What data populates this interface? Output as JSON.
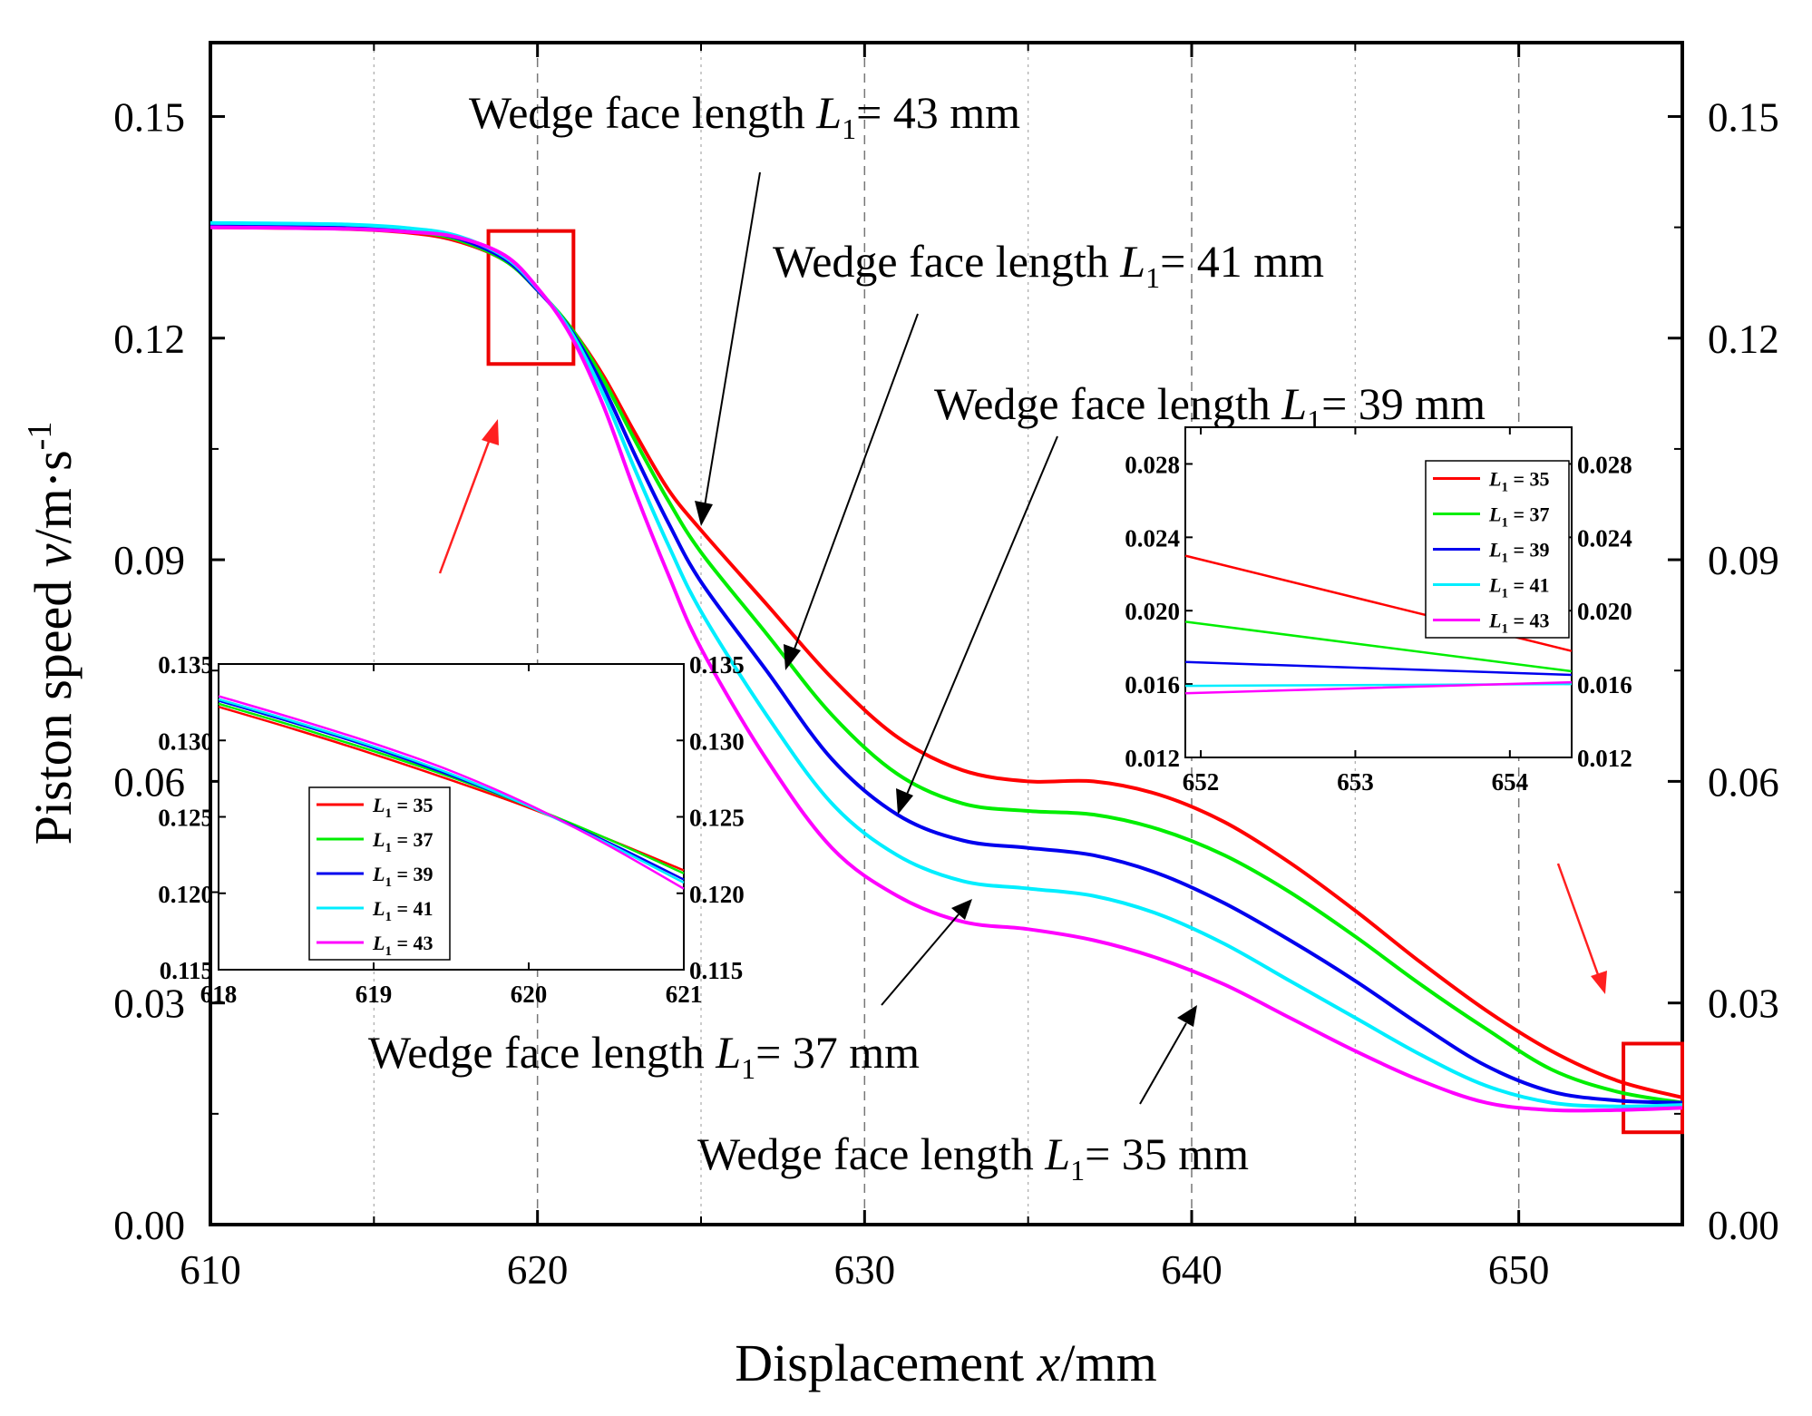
{
  "chart_data": {
    "type": "line",
    "xlabel": "Displacement",
    "xlabel_var": "x",
    "xlabel_unit": "/mm",
    "ylabel": "Piston speed",
    "ylabel_var": "v",
    "ylabel_unit": "/m·s",
    "ylabel_exp": "-1",
    "xlim": [
      610,
      655
    ],
    "ylim": [
      0,
      0.16
    ],
    "x_ticks": [
      610,
      620,
      630,
      640,
      650
    ],
    "y_ticks": [
      0.0,
      0.03,
      0.06,
      0.09,
      0.12,
      0.15
    ],
    "y_tick_labels": [
      "0.00",
      "0.03",
      "0.06",
      "0.09",
      "0.12",
      "0.15"
    ],
    "dashed_gridlines_x": [
      620,
      630,
      640,
      650
    ],
    "dotted_gridlines_x": [
      615,
      625,
      635,
      645
    ],
    "series": [
      {
        "name": "L1 = 35",
        "label_sub": "1",
        "label_rest": " = 35",
        "color": "#ff0000",
        "x": [
          610,
          614,
          616,
          617.5,
          619,
          620,
          621,
          622,
          623,
          624,
          625,
          627,
          629,
          631,
          633,
          635,
          637,
          639,
          641,
          643,
          645,
          647,
          649,
          651,
          653,
          655
        ],
        "y": [
          0.135,
          0.1348,
          0.1343,
          0.1332,
          0.1305,
          0.1265,
          0.1215,
          0.115,
          0.107,
          0.0995,
          0.094,
          0.084,
          0.074,
          0.066,
          0.0615,
          0.06,
          0.06,
          0.0582,
          0.0545,
          0.049,
          0.0425,
          0.0355,
          0.029,
          0.0235,
          0.0195,
          0.0172
        ]
      },
      {
        "name": "L1 = 37",
        "label_sub": "1",
        "label_rest": " = 37",
        "color": "#00ee00",
        "x": [
          610,
          614,
          616,
          617.5,
          619,
          620,
          621,
          622,
          623,
          624,
          625,
          627,
          629,
          631,
          633,
          635,
          637,
          639,
          641,
          643,
          645,
          647,
          649,
          651,
          653,
          655
        ],
        "y": [
          0.1352,
          0.135,
          0.1345,
          0.1334,
          0.1305,
          0.1265,
          0.1215,
          0.1145,
          0.106,
          0.098,
          0.091,
          0.08,
          0.069,
          0.061,
          0.057,
          0.056,
          0.0555,
          0.0535,
          0.05,
          0.045,
          0.039,
          0.0325,
          0.0265,
          0.021,
          0.018,
          0.0165
        ]
      },
      {
        "name": "L1 = 39",
        "label_sub": "1",
        "label_rest": " = 39",
        "color": "#0000ee",
        "x": [
          610,
          614,
          616,
          617.5,
          619,
          620,
          621,
          622,
          623,
          624,
          625,
          627,
          629,
          631,
          633,
          635,
          637,
          639,
          641,
          643,
          645,
          647,
          649,
          651,
          653,
          655
        ],
        "y": [
          0.1353,
          0.1351,
          0.1346,
          0.1336,
          0.1307,
          0.1265,
          0.1212,
          0.1135,
          0.104,
          0.095,
          0.087,
          0.075,
          0.063,
          0.0555,
          0.052,
          0.051,
          0.05,
          0.0475,
          0.0435,
          0.0385,
          0.033,
          0.027,
          0.0215,
          0.018,
          0.0168,
          0.0165
        ]
      },
      {
        "name": "L1 = 41",
        "label_sub": "1",
        "label_rest": " = 41",
        "color": "#00eeff",
        "x": [
          610,
          614,
          616,
          617.5,
          619,
          620,
          621,
          622,
          623,
          624,
          625,
          627,
          629,
          631,
          633,
          635,
          637,
          639,
          641,
          643,
          645,
          647,
          649,
          651,
          653,
          655
        ],
        "y": [
          0.1356,
          0.1354,
          0.1349,
          0.1339,
          0.131,
          0.1267,
          0.121,
          0.1125,
          0.102,
          0.092,
          0.083,
          0.069,
          0.057,
          0.05,
          0.0465,
          0.0455,
          0.0445,
          0.042,
          0.038,
          0.033,
          0.028,
          0.023,
          0.0188,
          0.0165,
          0.016,
          0.0162
        ]
      },
      {
        "name": "L1 = 43",
        "label_sub": "1",
        "label_rest": " = 43",
        "color": "#ff00ff",
        "x": [
          610,
          614,
          616,
          617.5,
          619,
          620,
          621,
          622,
          623,
          624,
          625,
          627,
          629,
          631,
          633,
          635,
          637,
          639,
          641,
          643,
          645,
          647,
          649,
          651,
          653,
          655
        ],
        "y": [
          0.135,
          0.1348,
          0.1344,
          0.1337,
          0.1312,
          0.1268,
          0.1205,
          0.111,
          0.099,
          0.088,
          0.078,
          0.063,
          0.051,
          0.0445,
          0.041,
          0.04,
          0.0385,
          0.036,
          0.0325,
          0.028,
          0.0235,
          0.0195,
          0.0165,
          0.0155,
          0.0155,
          0.0158
        ]
      }
    ],
    "annotations": [
      {
        "key": "a43",
        "prefix": "Wedge face length ",
        "var": "L",
        "sub": "1",
        "suffix": "= 43 mm"
      },
      {
        "key": "a41",
        "prefix": "Wedge face length ",
        "var": "L",
        "sub": "1",
        "suffix": "= 41 mm"
      },
      {
        "key": "a39",
        "prefix": "Wedge face length ",
        "var": "L",
        "sub": "1",
        "suffix": "= 39 mm"
      },
      {
        "key": "a37",
        "prefix": "Wedge face length ",
        "var": "L",
        "sub": "1",
        "suffix": "= 37 mm"
      },
      {
        "key": "a35",
        "prefix": "Wedge face length ",
        "var": "L",
        "sub": "1",
        "suffix": "= 35 mm"
      }
    ],
    "zoom_boxes": [
      {
        "name": "left",
        "x_range": [
          618.5,
          621.1
        ],
        "y_range": [
          0.1165,
          0.1345
        ]
      },
      {
        "name": "right",
        "x_range": [
          653.2,
          655
        ],
        "y_range": [
          0.0125,
          0.0245
        ]
      }
    ],
    "insets": [
      {
        "name": "left-inset",
        "xlim": [
          618,
          621
        ],
        "ylim": [
          0.115,
          0.135
        ],
        "x_ticks": [
          618,
          619,
          620,
          621
        ],
        "x_tick_labels": [
          "618",
          "619",
          "620",
          "621"
        ],
        "y_ticks": [
          0.115,
          0.12,
          0.125,
          0.13,
          0.135
        ],
        "y_tick_labels": [
          "0.115",
          "0.120",
          "0.125",
          "0.130",
          "0.135"
        ],
        "legend_position": "lower-left",
        "series_y": [
          [
            0.1322,
            0.1307,
            0.1291,
            0.1274,
            0.1256,
            0.1236,
            0.1215
          ],
          [
            0.1324,
            0.1309,
            0.1293,
            0.1276,
            0.1257,
            0.1236,
            0.1213
          ],
          [
            0.1326,
            0.1311,
            0.1295,
            0.1277,
            0.1257,
            0.1234,
            0.1209
          ],
          [
            0.1327,
            0.1312,
            0.1296,
            0.1278,
            0.1257,
            0.1233,
            0.1207
          ],
          [
            0.1329,
            0.1314,
            0.1298,
            0.128,
            0.1258,
            0.1232,
            0.1203
          ]
        ],
        "series_x": [
          618,
          618.5,
          619,
          619.5,
          620,
          620.5,
          621
        ]
      },
      {
        "name": "right-inset",
        "xlim": [
          651.9,
          654.4
        ],
        "ylim": [
          0.012,
          0.03
        ],
        "x_ticks": [
          652,
          653,
          654
        ],
        "x_tick_labels": [
          "652",
          "653",
          "654"
        ],
        "y_ticks": [
          0.012,
          0.016,
          0.02,
          0.024,
          0.028
        ],
        "y_tick_labels": [
          "0.012",
          "0.016",
          "0.020",
          "0.024",
          "0.028"
        ],
        "legend_position": "top-right",
        "series_x": [
          651.9,
          654.4
        ],
        "series_y": [
          [
            0.023,
            0.0178
          ],
          [
            0.0194,
            0.0167
          ],
          [
            0.0172,
            0.0165
          ],
          [
            0.0159,
            0.016
          ],
          [
            0.0155,
            0.0161
          ]
        ]
      }
    ]
  }
}
